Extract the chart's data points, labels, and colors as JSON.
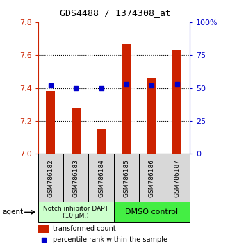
{
  "title": "GDS4488 / 1374308_at",
  "samples": [
    "GSM786182",
    "GSM786183",
    "GSM786184",
    "GSM786185",
    "GSM786186",
    "GSM786187"
  ],
  "bar_values": [
    7.38,
    7.28,
    7.15,
    7.67,
    7.46,
    7.63
  ],
  "percentile_values": [
    52,
    50,
    50,
    53,
    52,
    53
  ],
  "bar_color": "#cc2200",
  "dot_color": "#0000cc",
  "ylim_left": [
    7.0,
    7.8
  ],
  "ylim_right": [
    0,
    100
  ],
  "yticks_left": [
    7.0,
    7.2,
    7.4,
    7.6,
    7.8
  ],
  "yticks_right": [
    0,
    25,
    50,
    75,
    100
  ],
  "ytick_labels_right": [
    "0",
    "25",
    "50",
    "75",
    "100%"
  ],
  "grid_values": [
    7.2,
    7.4,
    7.6
  ],
  "group1_label": "Notch inhibitor DAPT\n(10 μM.)",
  "group2_label": "DMSO control",
  "group1_color": "#ccffcc",
  "group2_color": "#44ee44",
  "agent_label": "agent",
  "legend_bar_label": "transformed count",
  "legend_dot_label": "percentile rank within the sample",
  "bar_width": 0.35,
  "bar_bottom": 7.0,
  "bg_color": "#ffffff"
}
